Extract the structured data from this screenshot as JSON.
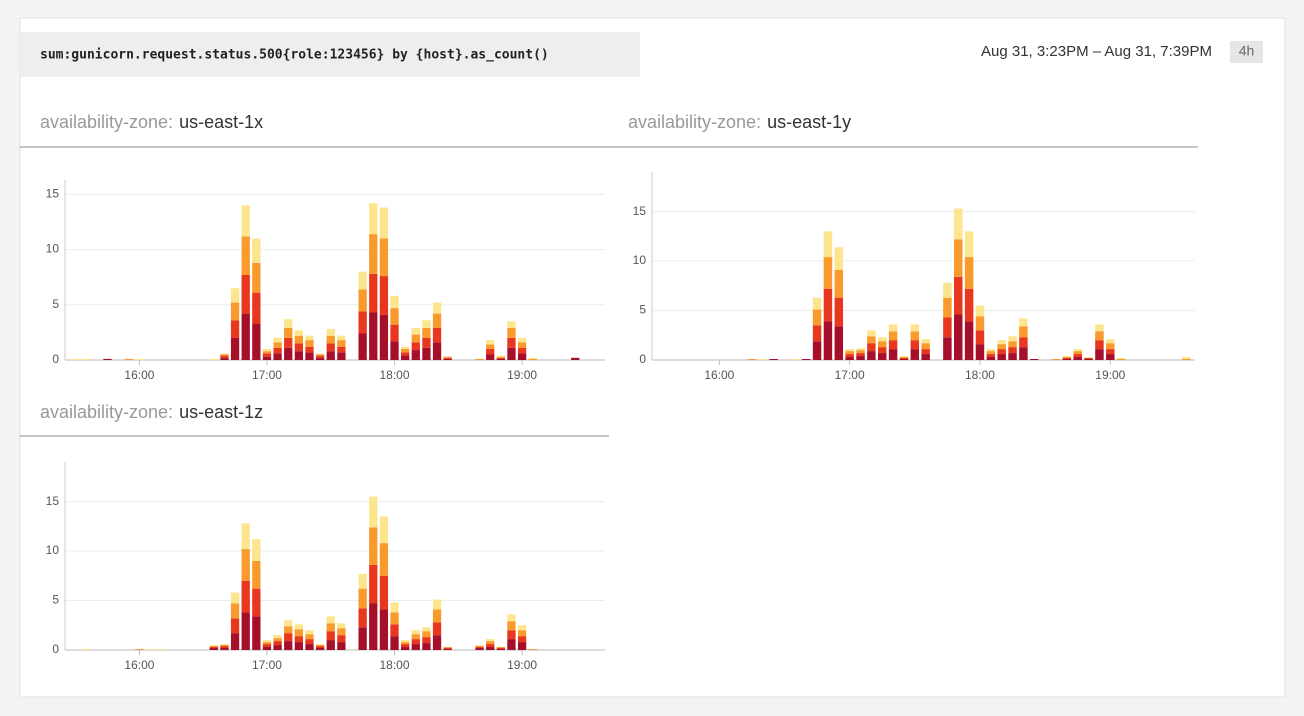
{
  "header": {
    "query": "sum:gunicorn.request.status.500{role:123456} by {host}.as_count()",
    "time_range": "Aug 31, 3:23PM – Aug 31, 7:39PM",
    "range_badge": "4h"
  },
  "chart_data": [
    {
      "type": "bar",
      "stacked": true,
      "title_prefix": "availability-zone:",
      "title": "us-east-1x",
      "x": [
        930,
        935,
        945,
        955,
        960,
        995,
        1000,
        1005,
        1010,
        1015,
        1020,
        1025,
        1030,
        1035,
        1040,
        1045,
        1050,
        1055,
        1065,
        1070,
        1075,
        1080,
        1085,
        1090,
        1095,
        1100,
        1105,
        1120,
        1125,
        1130,
        1135,
        1140,
        1145,
        1165
      ],
      "xlim": [
        925,
        1179
      ],
      "xticks": [
        {
          "value": 960,
          "label": "16:00"
        },
        {
          "value": 1020,
          "label": "17:00"
        },
        {
          "value": 1080,
          "label": "18:00"
        },
        {
          "value": 1140,
          "label": "19:00"
        }
      ],
      "ylim": [
        0,
        16.3
      ],
      "yticks": [
        0,
        5,
        10,
        15
      ],
      "grid": true,
      "series": [
        {
          "color": "#a50f2a",
          "values": [
            0,
            0,
            0.1,
            0,
            0,
            0,
            0.2,
            2,
            4.2,
            3.3,
            0.3,
            0.6,
            1.1,
            0.8,
            0.7,
            0.2,
            0.8,
            0.7,
            2.4,
            4.3,
            4.1,
            1.7,
            0.4,
            0.9,
            1.1,
            1.6,
            0.1,
            0,
            0.5,
            0.1,
            1.1,
            0.6,
            0,
            0.2
          ]
        },
        {
          "color": "#e8361f",
          "values": [
            0,
            0,
            0,
            0,
            0,
            0,
            0.2,
            1.6,
            3.5,
            2.8,
            0.3,
            0.5,
            0.9,
            0.7,
            0.5,
            0.2,
            0.7,
            0.5,
            2,
            3.5,
            3.5,
            1.5,
            0.3,
            0.7,
            0.9,
            1.3,
            0.1,
            0,
            0.5,
            0.1,
            0.9,
            0.5,
            0,
            0
          ]
        },
        {
          "color": "#f89a2c",
          "values": [
            0,
            0,
            0,
            0.1,
            0,
            0,
            0.1,
            1.6,
            3.5,
            2.7,
            0.2,
            0.5,
            0.9,
            0.7,
            0.6,
            0.1,
            0.7,
            0.6,
            2,
            3.6,
            3.4,
            1.5,
            0.3,
            0.7,
            0.9,
            1.3,
            0.1,
            0.1,
            0.4,
            0.1,
            0.9,
            0.5,
            0.1,
            0
          ]
        },
        {
          "color": "#fde58e",
          "values": [
            0.1,
            0.1,
            0,
            0,
            0.1,
            0.1,
            0.1,
            1.3,
            2.8,
            2.2,
            0.2,
            0.4,
            0.8,
            0.5,
            0.4,
            0.1,
            0.6,
            0.4,
            1.6,
            2.8,
            2.8,
            1.1,
            0.2,
            0.6,
            0.7,
            1,
            0,
            0,
            0.4,
            0.1,
            0.6,
            0.4,
            0.1,
            0
          ]
        }
      ]
    },
    {
      "type": "bar",
      "stacked": true,
      "title_prefix": "availability-zone:",
      "title": "us-east-1y",
      "x": [
        975,
        980,
        985,
        995,
        1000,
        1005,
        1010,
        1015,
        1020,
        1025,
        1030,
        1035,
        1040,
        1045,
        1050,
        1055,
        1065,
        1070,
        1075,
        1080,
        1085,
        1090,
        1095,
        1100,
        1105,
        1115,
        1120,
        1125,
        1130,
        1135,
        1140,
        1145,
        1175
      ],
      "xlim": [
        929,
        1179
      ],
      "xticks": [
        {
          "value": 960,
          "label": "16:00"
        },
        {
          "value": 1020,
          "label": "17:00"
        },
        {
          "value": 1080,
          "label": "18:00"
        },
        {
          "value": 1140,
          "label": "19:00"
        }
      ],
      "ylim": [
        0,
        19
      ],
      "yticks": [
        0,
        5,
        10,
        15
      ],
      "grid": true,
      "series": [
        {
          "color": "#a50f2a",
          "values": [
            0,
            0,
            0.1,
            0,
            0.1,
            1.9,
            3.9,
            3.4,
            0.3,
            0.4,
            0.9,
            0.7,
            1.1,
            0.1,
            1.1,
            0.6,
            2.3,
            4.6,
            3.9,
            1.6,
            0.3,
            0.6,
            0.7,
            1.3,
            0.1,
            0,
            0.1,
            0.3,
            0.1,
            1.1,
            0.6,
            0,
            0
          ]
        },
        {
          "color": "#e8361f",
          "values": [
            0,
            0,
            0,
            0,
            0,
            1.6,
            3.3,
            2.9,
            0.3,
            0.3,
            0.8,
            0.6,
            0.9,
            0.1,
            0.9,
            0.5,
            2,
            3.8,
            3.3,
            1.4,
            0.3,
            0.5,
            0.6,
            1,
            0,
            0,
            0.1,
            0.3,
            0.1,
            0.9,
            0.5,
            0,
            0
          ]
        },
        {
          "color": "#f89a2c",
          "values": [
            0.1,
            0,
            0,
            0,
            0,
            1.6,
            3.2,
            2.8,
            0.3,
            0.3,
            0.7,
            0.6,
            0.9,
            0.1,
            0.9,
            0.6,
            2,
            3.8,
            3.2,
            1.4,
            0.3,
            0.5,
            0.6,
            1.1,
            0,
            0.1,
            0.1,
            0.3,
            0,
            0.9,
            0.6,
            0.1,
            0.1
          ]
        },
        {
          "color": "#fde58e",
          "values": [
            0,
            0.1,
            0,
            0.1,
            0,
            1.2,
            2.6,
            2.3,
            0.2,
            0.2,
            0.6,
            0.4,
            0.7,
            0.1,
            0.7,
            0.4,
            1.5,
            3.1,
            2.6,
            1.1,
            0.2,
            0.4,
            0.5,
            0.8,
            0,
            0,
            0.1,
            0.2,
            0.1,
            0.7,
            0.4,
            0.1,
            0.2
          ]
        }
      ]
    },
    {
      "type": "bar",
      "stacked": true,
      "title_prefix": "availability-zone:",
      "title": "us-east-1z",
      "x": [
        935,
        960,
        965,
        970,
        995,
        1000,
        1005,
        1010,
        1015,
        1020,
        1025,
        1030,
        1035,
        1040,
        1045,
        1050,
        1055,
        1065,
        1070,
        1075,
        1080,
        1085,
        1090,
        1095,
        1100,
        1105,
        1120,
        1125,
        1130,
        1135,
        1140,
        1145
      ],
      "xlim": [
        925,
        1179
      ],
      "xticks": [
        {
          "value": 960,
          "label": "16:00"
        },
        {
          "value": 1020,
          "label": "17:00"
        },
        {
          "value": 1080,
          "label": "18:00"
        },
        {
          "value": 1140,
          "label": "19:00"
        }
      ],
      "ylim": [
        0,
        19
      ],
      "yticks": [
        0,
        5,
        10,
        15
      ],
      "grid": true,
      "series": [
        {
          "color": "#a50f2a",
          "values": [
            0,
            0,
            0,
            0,
            0.2,
            0.2,
            1.7,
            3.8,
            3.4,
            0.3,
            0.5,
            0.9,
            0.8,
            0.6,
            0.2,
            1,
            0.8,
            2.3,
            4.7,
            4.1,
            1.4,
            0.3,
            0.6,
            0.7,
            1.5,
            0.1,
            0.2,
            0.3,
            0.1,
            1.1,
            0.8,
            0
          ]
        },
        {
          "color": "#e8361f",
          "values": [
            0,
            0,
            0,
            0,
            0.1,
            0.2,
            1.5,
            3.2,
            2.8,
            0.3,
            0.4,
            0.8,
            0.6,
            0.5,
            0.2,
            0.9,
            0.7,
            1.9,
            3.9,
            3.4,
            1.2,
            0.3,
            0.5,
            0.6,
            1.3,
            0.1,
            0.1,
            0.3,
            0.1,
            0.9,
            0.6,
            0
          ]
        },
        {
          "color": "#f89a2c",
          "values": [
            0,
            0.1,
            0,
            0,
            0.1,
            0.1,
            1.5,
            3.2,
            2.8,
            0.2,
            0.3,
            0.7,
            0.7,
            0.5,
            0.1,
            0.8,
            0.7,
            2,
            3.8,
            3.3,
            1.2,
            0.2,
            0.5,
            0.6,
            1.3,
            0.1,
            0.1,
            0.3,
            0.1,
            0.9,
            0.6,
            0.1
          ]
        },
        {
          "color": "#fde58e",
          "values": [
            0.1,
            0,
            0.1,
            0.1,
            0.1,
            0.1,
            1.1,
            2.6,
            2.2,
            0.2,
            0.3,
            0.6,
            0.5,
            0.4,
            0.1,
            0.7,
            0.5,
            1.5,
            3.1,
            2.7,
            1,
            0.2,
            0.4,
            0.4,
            1,
            0,
            0.1,
            0.2,
            0,
            0.7,
            0.5,
            0
          ]
        }
      ]
    }
  ]
}
